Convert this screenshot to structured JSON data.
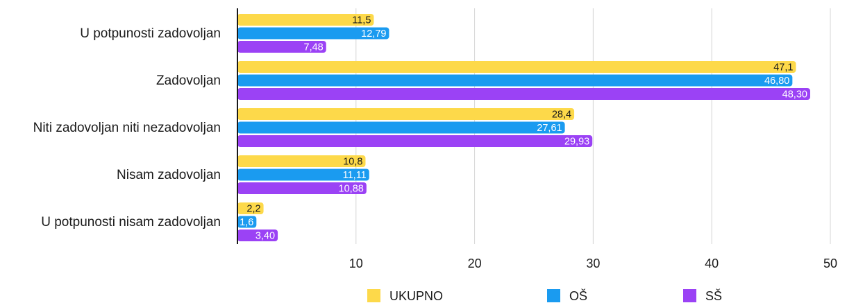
{
  "chart_data": {
    "type": "bar",
    "orientation": "horizontal",
    "categories": [
      "U potpunosti zadovoljan",
      "Zadovoljan",
      "Niti zadovoljan niti nezadovoljan",
      "Nisam zadovoljan",
      "U potpunosti nisam zadovoljan"
    ],
    "series": [
      {
        "name": "UKUPNO",
        "color": "#FDD94A",
        "label_color": "#1a1a1a",
        "values": [
          11.5,
          47.1,
          28.4,
          10.8,
          2.2
        ],
        "labels": [
          "11,5",
          "47,1",
          "28,4",
          "10,8",
          "2,2"
        ]
      },
      {
        "name": "OŠ",
        "color": "#1A9BF0",
        "label_color": "#ffffff",
        "values": [
          12.79,
          46.8,
          27.61,
          11.11,
          1.6
        ],
        "labels": [
          "12,79",
          "46,80",
          "27,61",
          "11,11",
          "1,6"
        ]
      },
      {
        "name": "SŠ",
        "color": "#9B42F5",
        "label_color": "#ffffff",
        "values": [
          7.48,
          48.3,
          29.93,
          10.88,
          3.4
        ],
        "labels": [
          "7,48",
          "48,30",
          "29,93",
          "10,88",
          "3,40"
        ]
      }
    ],
    "xlim": [
      0,
      50
    ],
    "xticks": [
      10,
      20,
      30,
      40,
      50
    ],
    "grid": true,
    "legend_position": "bottom"
  }
}
